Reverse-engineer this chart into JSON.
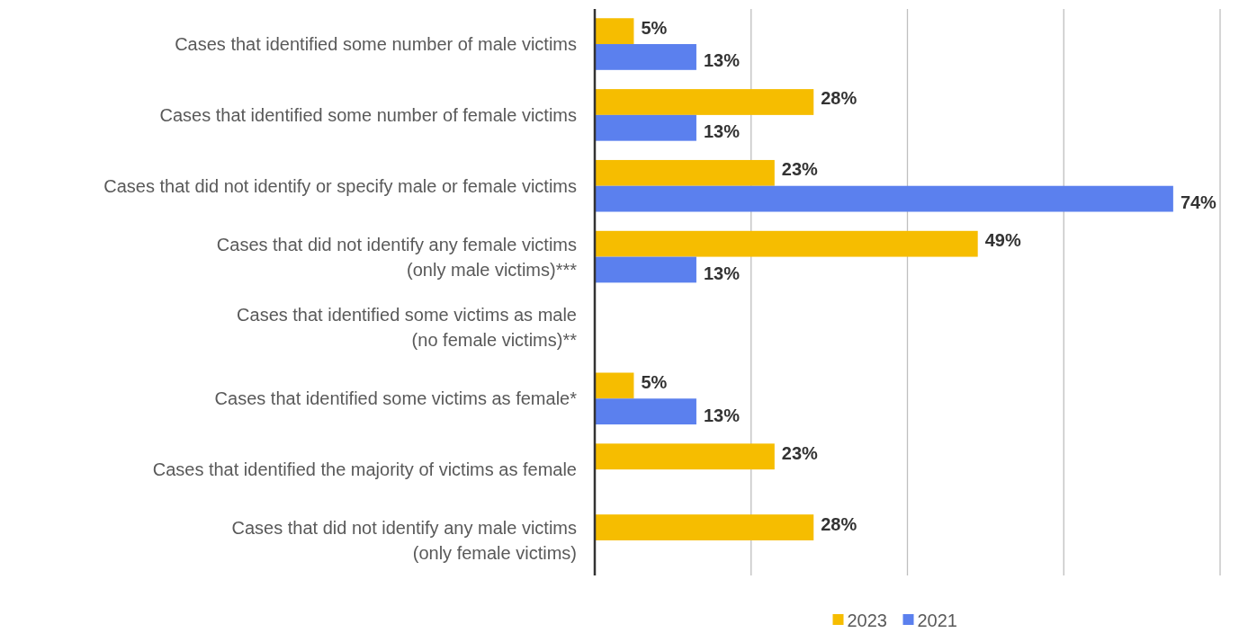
{
  "chart_data": {
    "type": "bar",
    "orientation": "horizontal",
    "categories": [
      "Cases that identified some number of male victims",
      "Cases that identified some number of female victims",
      "Cases that did not identify or specify male or female victims",
      "Cases that did not identify any female victims\n(only male victims)***",
      "Cases that identified some victims as male\n(no female victims)**",
      "Cases that identified some victims as female*",
      "Cases that identified the majority of victims as female",
      "Cases that did not identify any male victims\n(only female victims)"
    ],
    "series": [
      {
        "name": "2023",
        "color": "#f6bd00",
        "values": [
          5,
          28,
          23,
          49,
          null,
          5,
          23,
          28
        ],
        "value_labels": [
          "5%",
          "28%",
          "23%",
          "49%",
          null,
          "5%",
          "23%",
          "28%"
        ]
      },
      {
        "name": "2021",
        "color": "#5b80ee",
        "values": [
          13,
          13,
          74,
          13,
          null,
          13,
          null,
          null
        ],
        "value_labels": [
          "13%",
          "13%",
          "74%",
          "13%",
          null,
          "13%",
          null,
          null
        ]
      }
    ],
    "xlim": [
      0,
      80
    ],
    "xticks": [
      {
        "value": 0,
        "label": null
      },
      {
        "value": 20,
        "label": null
      },
      {
        "value": 40,
        "label": null
      },
      {
        "value": 60,
        "label": null
      },
      {
        "value": 80,
        "label": null
      }
    ],
    "grid": "x",
    "tick_labels": "y",
    "legend": "bottom"
  }
}
